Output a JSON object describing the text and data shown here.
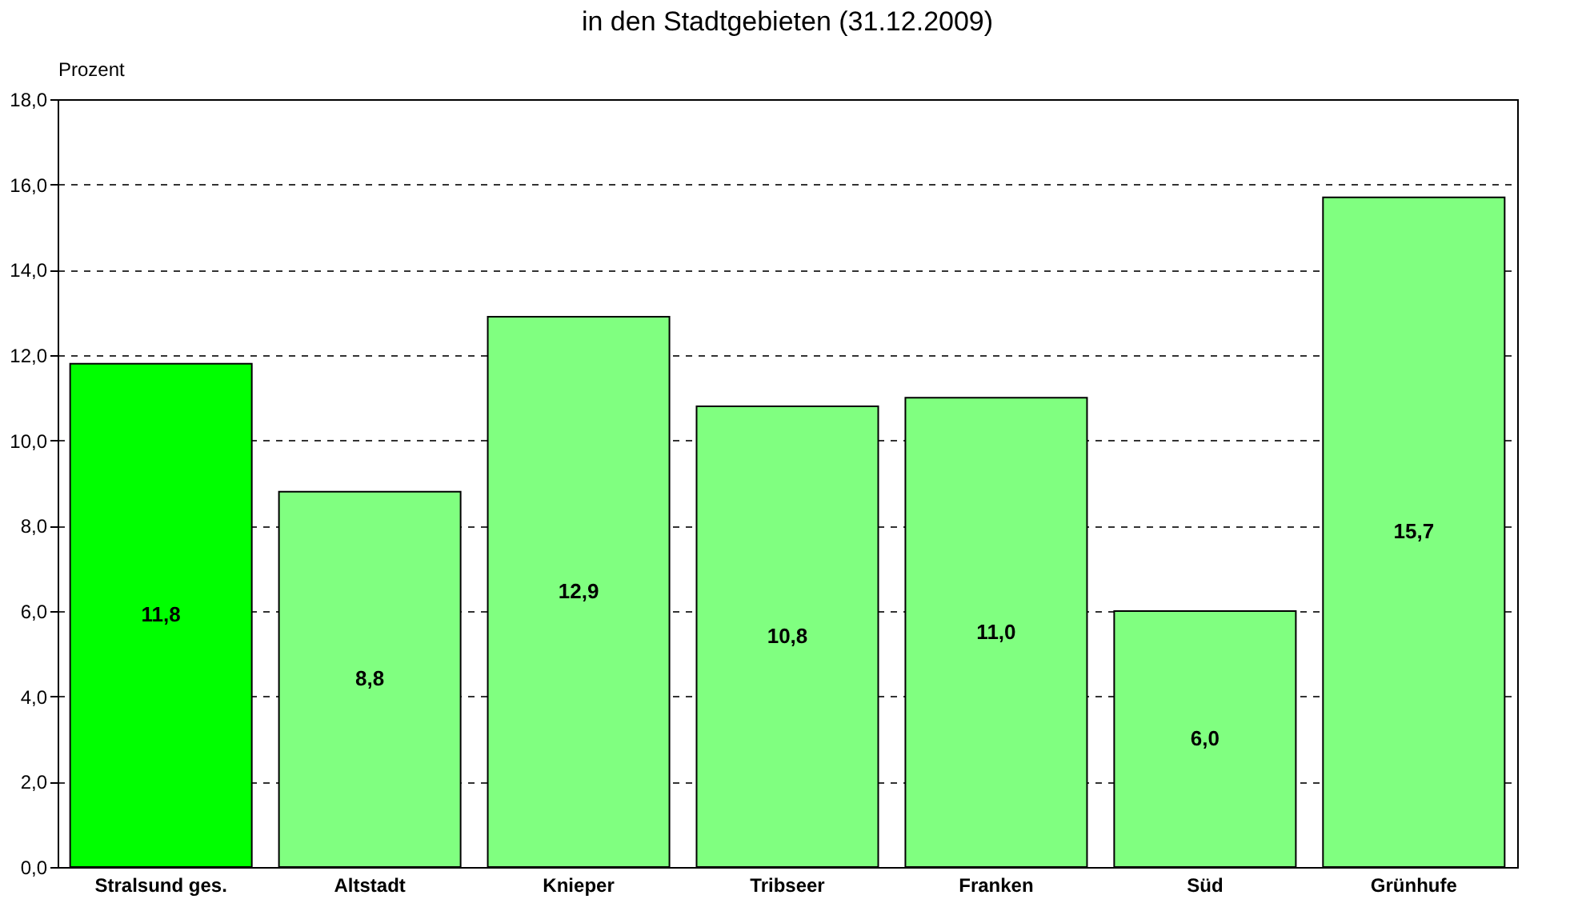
{
  "chart_data": {
    "type": "bar",
    "title": "in den Stadtgebieten (31.12.2009)",
    "ylabel": "Prozent",
    "categories": [
      "Stralsund ges.",
      "Altstadt",
      "Knieper",
      "Tribseer",
      "Franken",
      "Süd",
      "Grünhufe"
    ],
    "values": [
      11.8,
      8.8,
      12.9,
      10.8,
      11.0,
      6.0,
      15.7
    ],
    "colors": [
      "#00ff00",
      "#80ff80",
      "#80ff80",
      "#80ff80",
      "#80ff80",
      "#80ff80",
      "#80ff80"
    ],
    "value_labels": [
      "11,8",
      "8,8",
      "12,9",
      "10,8",
      "11,0",
      "6,0",
      "15,7"
    ],
    "ylim": [
      0,
      18
    ],
    "yticks": [
      {
        "value": 0,
        "label": "0,0"
      },
      {
        "value": 2,
        "label": "2,0"
      },
      {
        "value": 4,
        "label": "4,0"
      },
      {
        "value": 6,
        "label": "6,0"
      },
      {
        "value": 8,
        "label": "8,0"
      },
      {
        "value": 10,
        "label": "10,0"
      },
      {
        "value": 12,
        "label": "12,0"
      },
      {
        "value": 14,
        "label": "14,0"
      },
      {
        "value": 16,
        "label": "16,0"
      },
      {
        "value": 18,
        "label": "18,0"
      }
    ],
    "grid": "y"
  }
}
